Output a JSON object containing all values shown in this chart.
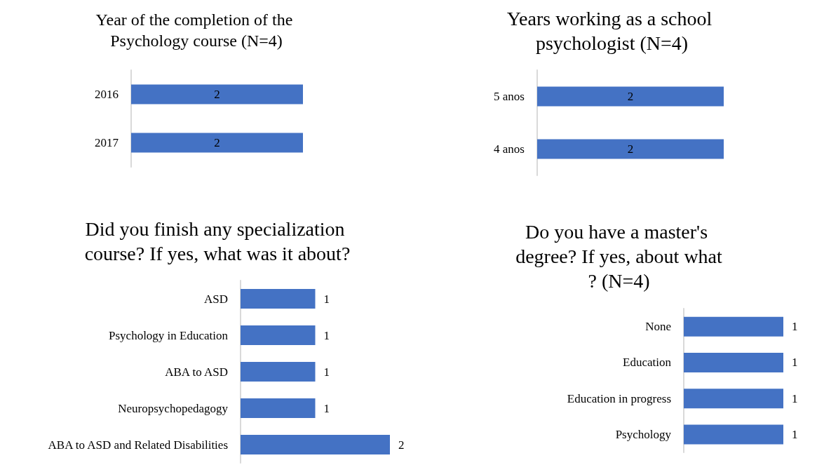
{
  "chart_data": [
    {
      "type": "bar",
      "orientation": "horizontal",
      "title": "Year of the completion of the Psychology course (N=4)",
      "categories": [
        "2016",
        "2017"
      ],
      "values": [
        2,
        2
      ],
      "color": "#4472c4",
      "data_labels": true,
      "grid": false,
      "legend": false
    },
    {
      "type": "bar",
      "orientation": "horizontal",
      "title": "Years working as a school psychologist (N=4)",
      "categories": [
        "5 anos",
        "4 anos"
      ],
      "values": [
        2,
        2
      ],
      "color": "#4472c4",
      "data_labels": true,
      "grid": false,
      "legend": false
    },
    {
      "type": "bar",
      "orientation": "horizontal",
      "title": "Did you finish any specialization course? If yes, what was it about?",
      "categories": [
        "ASD",
        "Psychology in Education",
        "ABA to ASD",
        "Neuropsychopedagogy",
        "ABA to ASD and Related Disabilities"
      ],
      "values": [
        1,
        1,
        1,
        1,
        2
      ],
      "color": "#4472c4",
      "data_labels": true,
      "grid": false,
      "legend": false
    },
    {
      "type": "bar",
      "orientation": "horizontal",
      "title": "Do you have a master's degree? If yes, about what? (N=4)",
      "categories": [
        "None",
        "Education",
        "Education in progress",
        "Psychology"
      ],
      "values": [
        1,
        1,
        1,
        1
      ],
      "color": "#4472c4",
      "data_labels": true,
      "grid": false,
      "legend": false
    }
  ]
}
